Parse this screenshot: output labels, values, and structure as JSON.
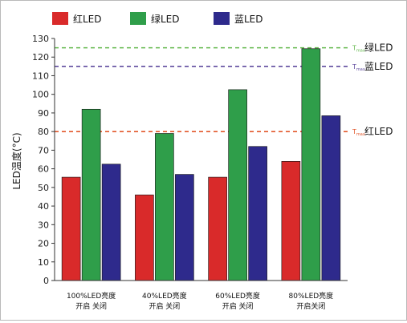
{
  "chart_data": {
    "type": "bar",
    "ylabel": "LED温度(°C)",
    "ylim": [
      0,
      130
    ],
    "yticks": [
      0,
      10,
      20,
      30,
      40,
      50,
      60,
      70,
      80,
      90,
      100,
      110,
      120,
      130
    ],
    "grid": false,
    "legend_placement": "top",
    "categories": [
      [
        "100%LED亮度",
        "开启 关闭"
      ],
      [
        "40%LED亮度",
        "开启 关闭"
      ],
      [
        "60%LED亮度",
        "开启 关闭"
      ],
      [
        "80%LED亮度",
        "开启关闭"
      ]
    ],
    "series": [
      {
        "name": "红LED",
        "color": "#d92a2a",
        "values": [
          55.5,
          46,
          55.5,
          64
        ]
      },
      {
        "name": "绿LED",
        "color": "#2f9e4a",
        "values": [
          92,
          79,
          102.5,
          124.5
        ]
      },
      {
        "name": "蓝LED",
        "color": "#2e2a8c",
        "values": [
          62.5,
          57,
          72,
          88.5
        ]
      }
    ],
    "thresholds": [
      {
        "label": "绿LED",
        "marker": "Tmax",
        "value": 125,
        "color": "#63b84c"
      },
      {
        "label": "蓝LED",
        "marker": "Tmax",
        "value": 115,
        "color": "#5f4a9e"
      },
      {
        "label": "红LED",
        "marker": "Tmax",
        "value": 80,
        "color": "#e2572a"
      }
    ]
  }
}
